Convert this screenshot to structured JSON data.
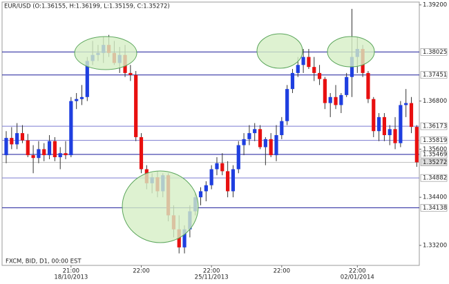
{
  "chart_data": {
    "type": "candlestick",
    "title": "EUR/USD (O:1.36155, H:1.36199, L:1.35159, C:1.35272)",
    "source": "FXCM, BID, D1, 00:00 EST",
    "up_color": "#1f3fe0",
    "down_color": "#e81010",
    "categories": [
      null,
      null,
      null,
      null,
      null,
      null,
      null,
      null,
      null,
      null,
      null,
      null,
      [
        "21:00",
        "18/10/2013"
      ],
      null,
      null,
      null,
      null,
      null,
      null,
      null,
      null,
      null,
      null,
      null,
      null,
      [
        "22:00"
      ],
      null,
      null,
      null,
      null,
      null,
      null,
      null,
      null,
      null,
      null,
      null,
      null,
      [
        "22:00",
        "25/11/2013"
      ],
      null,
      null,
      null,
      null,
      null,
      null,
      null,
      null,
      null,
      null,
      null,
      null,
      [
        "22:00"
      ],
      null,
      null,
      null,
      null,
      null,
      null,
      null,
      null,
      null,
      null,
      null,
      null,
      null,
      [
        "22:00",
        "02/01/2014"
      ],
      null,
      null,
      null,
      null,
      null,
      null,
      null,
      null,
      null,
      null,
      null
    ],
    "open": [
      1.3545,
      1.3588,
      1.3572,
      1.36,
      1.3582,
      1.3545,
      1.3538,
      1.356,
      1.3545,
      1.358,
      1.354,
      1.355,
      1.3545,
      1.368,
      1.3685,
      1.369,
      1.378,
      1.3795,
      1.38,
      1.382,
      1.38,
      1.3775,
      1.3795,
      1.375,
      1.3745,
      1.359,
      1.351,
      1.3475,
      1.349,
      1.3455,
      1.3495,
      1.3395,
      1.336,
      1.3315,
      1.336,
      1.3405,
      1.344,
      1.3455,
      1.347,
      1.351,
      1.3525,
      1.3505,
      1.3455,
      1.351,
      1.357,
      1.3585,
      1.36,
      1.361,
      1.3565,
      1.3585,
      1.3545,
      1.3595,
      1.363,
      1.371,
      1.375,
      1.377,
      1.379,
      1.3765,
      1.375,
      1.3735,
      1.3675,
      1.369,
      1.367,
      1.3695,
      1.374,
      1.379,
      1.381,
      1.375,
      1.3685,
      1.3605,
      1.364,
      1.3595,
      1.361,
      1.3575,
      1.367,
      1.3675,
      1.36155
    ],
    "high": [
      1.3605,
      1.3615,
      1.3625,
      1.362,
      1.3598,
      1.357,
      1.358,
      1.3575,
      1.3595,
      1.359,
      1.3565,
      1.358,
      1.369,
      1.37,
      1.372,
      1.379,
      1.383,
      1.382,
      1.384,
      1.3845,
      1.383,
      1.3815,
      1.382,
      1.377,
      1.3755,
      1.36,
      1.352,
      1.35,
      1.3505,
      1.35,
      1.35,
      1.342,
      1.3395,
      1.337,
      1.342,
      1.345,
      1.3465,
      1.348,
      1.352,
      1.354,
      1.355,
      1.353,
      1.352,
      1.358,
      1.36,
      1.362,
      1.3625,
      1.362,
      1.359,
      1.36,
      1.362,
      1.364,
      1.372,
      1.376,
      1.379,
      1.381,
      1.381,
      1.379,
      1.377,
      1.374,
      1.37,
      1.372,
      1.37,
      1.375,
      1.391,
      1.384,
      1.382,
      1.3755,
      1.369,
      1.365,
      1.365,
      1.362,
      1.364,
      1.368,
      1.371,
      1.369,
      1.36199
    ],
    "low": [
      1.3525,
      1.356,
      1.356,
      1.3575,
      1.354,
      1.35,
      1.3525,
      1.353,
      1.3535,
      1.353,
      1.351,
      1.3535,
      1.354,
      1.366,
      1.367,
      1.368,
      1.377,
      1.378,
      1.3775,
      1.379,
      1.377,
      1.375,
      1.374,
      1.373,
      1.358,
      1.35,
      1.346,
      1.345,
      1.344,
      1.344,
      1.338,
      1.334,
      1.33,
      1.33,
      1.334,
      1.3395,
      1.342,
      1.343,
      1.346,
      1.3495,
      1.3495,
      1.344,
      1.344,
      1.35,
      1.3545,
      1.357,
      1.358,
      1.356,
      1.352,
      1.354,
      1.353,
      1.3585,
      1.362,
      1.37,
      1.374,
      1.375,
      1.376,
      1.373,
      1.372,
      1.366,
      1.364,
      1.366,
      1.365,
      1.369,
      1.369,
      1.375,
      1.374,
      1.3675,
      1.359,
      1.358,
      1.358,
      1.357,
      1.356,
      1.3565,
      1.364,
      1.36,
      1.35159
    ],
    "close": [
      1.3588,
      1.3572,
      1.36,
      1.3582,
      1.3545,
      1.3538,
      1.356,
      1.3545,
      1.358,
      1.354,
      1.355,
      1.3545,
      1.368,
      1.3685,
      1.369,
      1.378,
      1.3795,
      1.38,
      1.382,
      1.38,
      1.3775,
      1.3795,
      1.375,
      1.3745,
      1.359,
      1.351,
      1.3475,
      1.349,
      1.3455,
      1.3495,
      1.3395,
      1.336,
      1.3315,
      1.336,
      1.3405,
      1.344,
      1.3455,
      1.347,
      1.351,
      1.3525,
      1.3505,
      1.3455,
      1.351,
      1.357,
      1.3585,
      1.36,
      1.361,
      1.3565,
      1.3585,
      1.3545,
      1.3595,
      1.363,
      1.371,
      1.375,
      1.377,
      1.379,
      1.3765,
      1.375,
      1.3735,
      1.3675,
      1.369,
      1.367,
      1.3695,
      1.374,
      1.379,
      1.381,
      1.375,
      1.3685,
      1.3605,
      1.364,
      1.3595,
      1.361,
      1.3575,
      1.367,
      1.3675,
      1.36155,
      1.35272
    ],
    "ylim": [
      1.32701,
      1.39269
    ],
    "yticks": [
      {
        "value": 1.392,
        "label": "1.39200"
      },
      {
        "value": 1.368,
        "label": "1.36800"
      },
      {
        "value": 1.356,
        "label": "1.35600"
      },
      {
        "value": 1.344,
        "label": "1.34400"
      },
      {
        "value": 1.332,
        "label": "1.33200"
      }
    ],
    "levels": [
      {
        "value": 1.38025,
        "color": "#1a1a9a"
      },
      {
        "value": 1.37451,
        "color": "#1a1a9a"
      },
      {
        "value": 1.36173,
        "color": "#7a7ad0"
      },
      {
        "value": 1.35819,
        "color": "#7a7ad0"
      },
      {
        "value": 1.35469,
        "color": "#1a1a9a"
      },
      {
        "value": 1.34882,
        "color": "#7a7ad0"
      },
      {
        "value": 1.34138,
        "color": "#1a1a9a"
      }
    ]
  }
}
